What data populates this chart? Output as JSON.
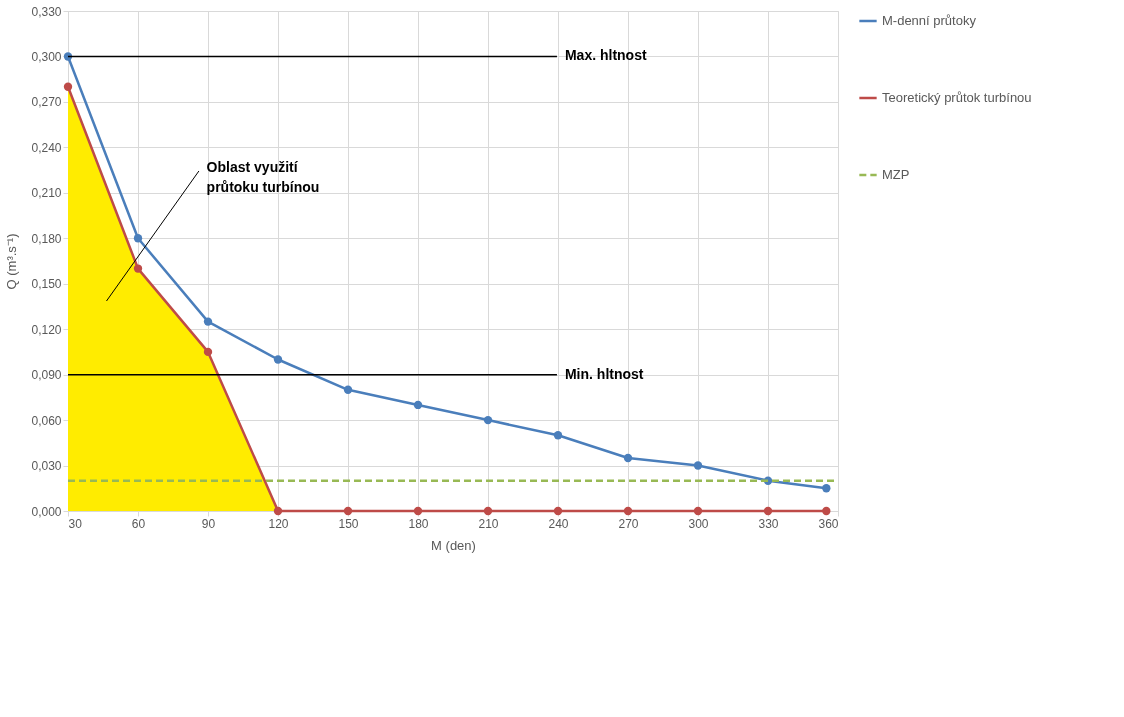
{
  "chart_data": {
    "type": "line",
    "xlabel": "M (den)",
    "ylabel": "Q (m³.s⁻¹)",
    "xlim": [
      30,
      360
    ],
    "xticks": [
      30,
      60,
      90,
      120,
      150,
      180,
      210,
      240,
      270,
      300,
      330,
      360
    ],
    "ylim": [
      0,
      0.33
    ],
    "yticks": [
      {
        "value": 0,
        "label": "0,000"
      },
      {
        "value": 0.03,
        "label": "0,030"
      },
      {
        "value": 0.06,
        "label": "0,060"
      },
      {
        "value": 0.09,
        "label": "0,090"
      },
      {
        "value": 0.12,
        "label": "0,120"
      },
      {
        "value": 0.15,
        "label": "0,150"
      },
      {
        "value": 0.18,
        "label": "0,180"
      },
      {
        "value": 0.21,
        "label": "0,210"
      },
      {
        "value": 0.24,
        "label": "0,240"
      },
      {
        "value": 0.27,
        "label": "0,270"
      },
      {
        "value": 0.3,
        "label": "0,300"
      },
      {
        "value": 0.33,
        "label": "0,330"
      }
    ],
    "grid": true,
    "legend": "right",
    "marker": "circle",
    "line_style": "solid",
    "series": [
      {
        "type": "area",
        "color": "#ffec00",
        "marker": "none",
        "x": [
          30,
          60,
          90,
          120
        ],
        "values": [
          0.28,
          0.16,
          0.105,
          0
        ]
      },
      {
        "name": "M-denní průtoky",
        "color": "#4a7ebb",
        "x": [
          30,
          60,
          90,
          120,
          150,
          180,
          210,
          240,
          270,
          300,
          330,
          355
        ],
        "values": [
          0.3,
          0.18,
          0.125,
          0.1,
          0.08,
          0.07,
          0.06,
          0.05,
          0.035,
          0.03,
          0.02,
          0.015
        ]
      },
      {
        "name": "Teoretický průtok turbínou",
        "color": "#be4b48",
        "x": [
          30,
          60,
          90,
          120,
          150,
          180,
          210,
          240,
          270,
          300,
          330,
          355
        ],
        "values": [
          0.28,
          0.16,
          0.105,
          0,
          0,
          0,
          0,
          0,
          0,
          0,
          0,
          0
        ]
      },
      {
        "name": "MZP",
        "color": "#98b954",
        "x": [
          30,
          360
        ],
        "values": [
          0.02,
          0.02
        ],
        "marker": "none",
        "line_style": "dashed"
      }
    ],
    "ref_lines": [
      {
        "axis": "y",
        "value": 0.3,
        "label": "Max. hltnost",
        "color": "#000000"
      },
      {
        "axis": "y",
        "value": 0.09,
        "label": "Min. hltnost",
        "color": "#000000"
      }
    ],
    "annotations": [
      "Oblast využití průtoku turbínou"
    ]
  }
}
